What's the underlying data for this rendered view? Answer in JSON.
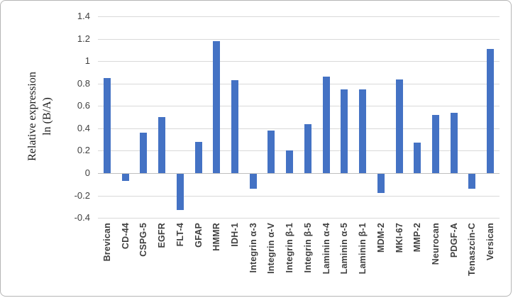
{
  "figure": {
    "background": "#ffffff",
    "border_color": "#b5b5b5"
  },
  "chart_data": {
    "type": "bar",
    "title": "",
    "ylabel_line1": "Relative expression",
    "ylabel_line2": "ln (B/A)",
    "xlabel": "",
    "bar_color": "#4472C4",
    "gridline_color": "#d9d9d9",
    "axis_line_color": "#bfbfbf",
    "tick_label_color": "#3f3f3f",
    "category_label_color": "#3f3f3f",
    "grid": true,
    "legend": false,
    "ylim": [
      -0.4,
      1.4
    ],
    "ytick_step": 0.2,
    "ytick_labels": [
      "1.4",
      "1.2",
      "1",
      "0.8",
      "0.6",
      "0.4",
      "0.2",
      "0",
      "-0.2",
      "-0.4"
    ],
    "ytick_values": [
      1.4,
      1.2,
      1.0,
      0.8,
      0.6,
      0.4,
      0.2,
      0,
      -0.2,
      -0.4
    ],
    "categories": [
      "Brevican",
      "CD-44",
      "CSPG-5",
      "EGFR",
      "FLT-4",
      "GFAP",
      "HMMR",
      "IDH-1",
      "Integrin α-3",
      "Integrin α-V",
      "Integrin β-1",
      "Integrin β-5",
      "Laminin α-4",
      "Laminin α-5",
      "Laminin β-1",
      "MDM-2",
      "MKI-67",
      "MMP-2",
      "Neurocan",
      "PDGF-A",
      "Tenaszcin-C",
      "Versican"
    ],
    "values": [
      0.85,
      -0.06,
      0.36,
      0.5,
      -0.32,
      0.28,
      1.18,
      0.83,
      -0.13,
      0.38,
      0.2,
      0.44,
      0.86,
      0.75,
      0.75,
      -0.17,
      0.84,
      0.27,
      0.52,
      0.54,
      -0.13,
      1.11
    ]
  }
}
